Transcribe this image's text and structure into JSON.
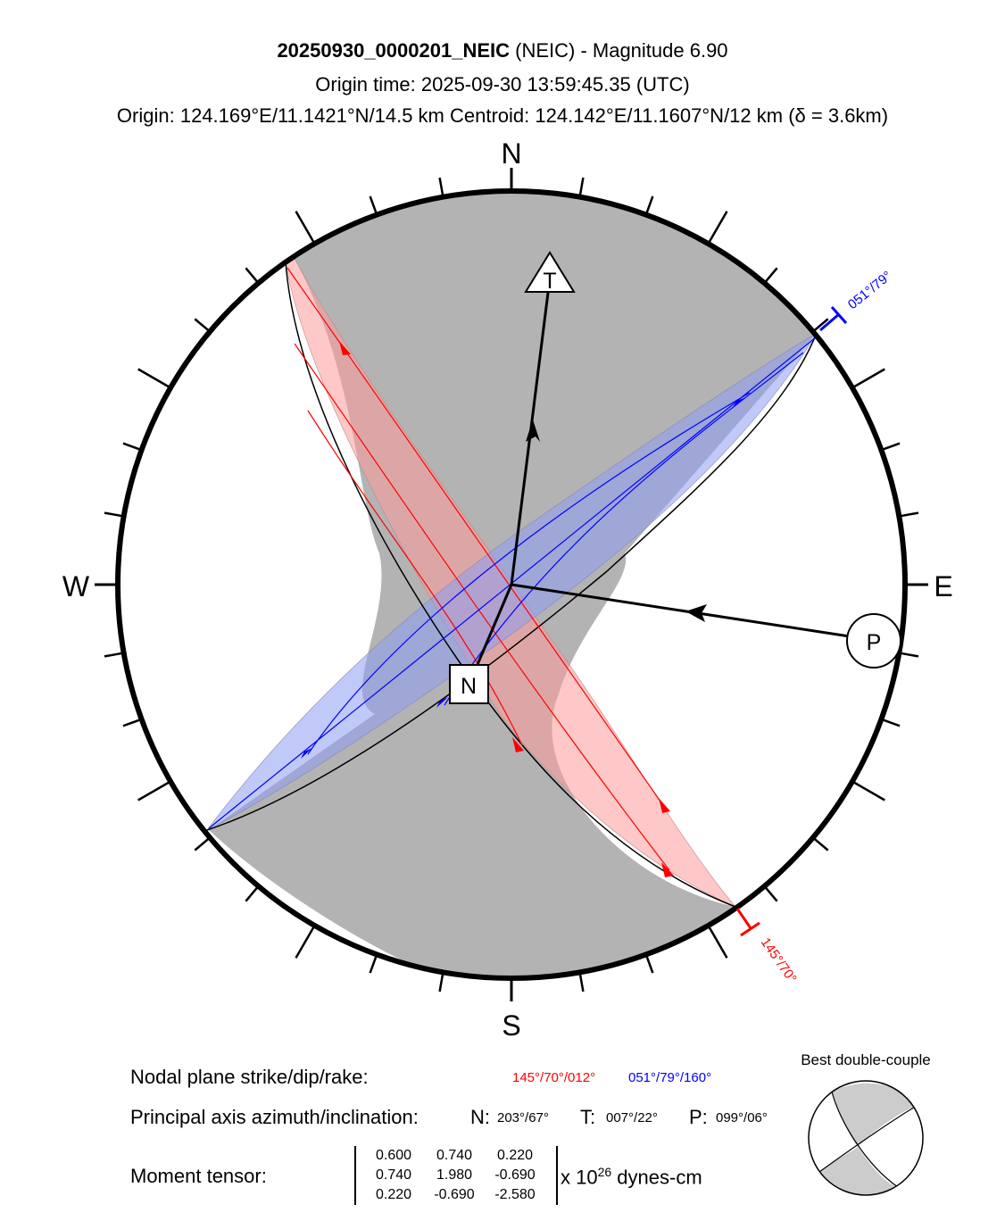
{
  "header": {
    "event_id": "20250930_0000201_NEIC",
    "agency": " (NEIC) - Magnitude 6.90",
    "origin_time": "Origin time: 2025-09-30 13:59:45.35 (UTC)",
    "location": "Origin: 124.169°E/11.1421°N/14.5 km   Centroid: 124.142°E/11.1607°N/12 km (δ = 3.6km)"
  },
  "compass": {
    "north": "N",
    "south": "S",
    "west": "W",
    "east": "E"
  },
  "axes": {
    "T": {
      "label": "T",
      "azimuth_deg": 7,
      "plunge_deg": 22
    },
    "P": {
      "label": "P",
      "azimuth_deg": 99,
      "plunge_deg": 6
    },
    "N": {
      "label": "N",
      "azimuth_deg": 203,
      "plunge_deg": 67
    }
  },
  "planes": {
    "plane1": {
      "label": "145°/70°",
      "strike": 145,
      "dip": 70,
      "rake": 12,
      "color": "#ff0000"
    },
    "plane2": {
      "label": "051°/79°",
      "strike": 51,
      "dip": 79,
      "rake": 160,
      "color": "#0000ff"
    }
  },
  "colors": {
    "compression_fill": "#b3b3b3",
    "plane1_band": "#ffb0b0",
    "plane2_band": "#a9b4f2"
  },
  "info": {
    "nodal_label": "Nodal plane strike/dip/rake:",
    "nodal_red": "145°/70°/012°",
    "nodal_blue": "051°/79°/160°",
    "axis_label": "Principal axis azimuth/inclination:",
    "n_label": "N:",
    "n_value": "203°/67°",
    "t_label": "T:",
    "t_value": "007°/22°",
    "p_label": "P:",
    "p_value": "099°/06°",
    "mt_label": "Moment tensor:",
    "mt_matrix": [
      [
        "0.600",
        "0.740",
        "0.220"
      ],
      [
        "0.740",
        "1.980",
        "-0.690"
      ],
      [
        "0.220",
        "-0.690",
        "-2.580"
      ]
    ],
    "mt_units_prefix": "x 10",
    "mt_units_exponent": "26",
    "mt_units_suffix": " dynes-cm",
    "bdc_title": "Best double-couple"
  }
}
